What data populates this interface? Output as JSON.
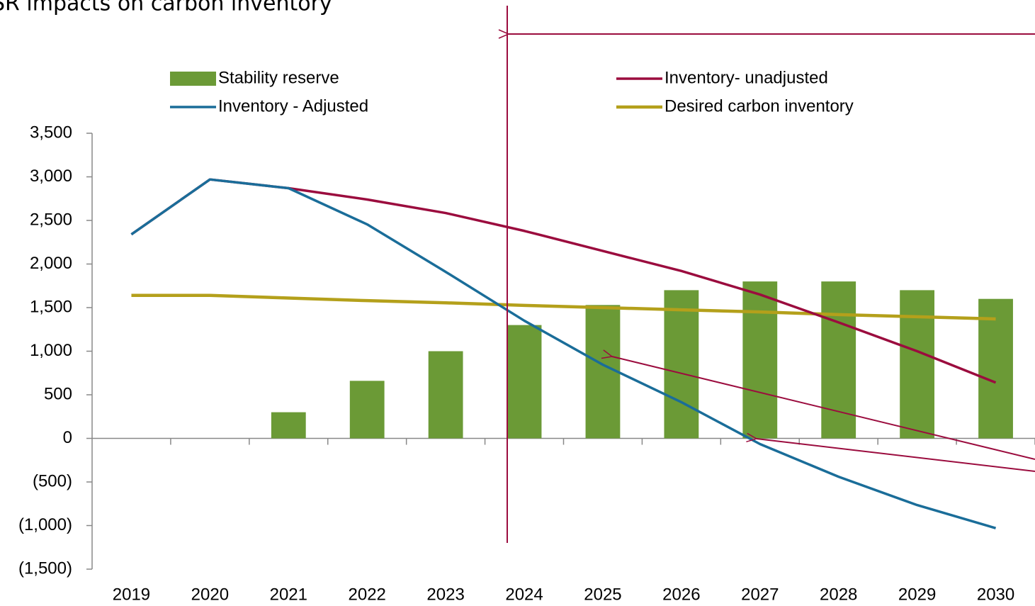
{
  "chart_data": {
    "type": "bar_line",
    "title": "SR impacts on carbon inventory",
    "categories": [
      "2019",
      "2020",
      "2021",
      "2022",
      "2023",
      "2024",
      "2025",
      "2026",
      "2027",
      "2028",
      "2029",
      "2030"
    ],
    "series": [
      {
        "name": "Stability reserve",
        "type": "bar",
        "color": "#6b9a36",
        "values": [
          null,
          null,
          300,
          660,
          1000,
          1300,
          1530,
          1700,
          1800,
          1800,
          1700,
          1600
        ]
      },
      {
        "name": "Inventory- unadjusted",
        "type": "line",
        "color": "#9b0c3e",
        "values": [
          2340,
          2970,
          2870,
          2740,
          2585,
          2380,
          2150,
          1920,
          1650,
          1330,
          1000,
          640
        ]
      },
      {
        "name": "Inventory - Adjusted",
        "type": "line",
        "color": "#1a6d99",
        "values": [
          2340,
          2970,
          2870,
          2455,
          1910,
          1350,
          845,
          415,
          -65,
          -440,
          -765,
          -1030
        ]
      },
      {
        "name": "Desired carbon inventory",
        "type": "line",
        "color": "#b4a01b",
        "values": [
          1640,
          1640,
          1610,
          1580,
          1555,
          1525,
          1500,
          1475,
          1450,
          1420,
          1395,
          1370
        ]
      }
    ],
    "ylim": [
      -1500,
      3500
    ],
    "yticks": [
      {
        "value": -1500,
        "label": "(1,500)"
      },
      {
        "value": -1000,
        "label": "(1,000)"
      },
      {
        "value": -500,
        "label": "(500)"
      },
      0,
      500,
      {
        "value": 1000,
        "label": "1,000"
      },
      {
        "value": 1500,
        "label": "1,500"
      },
      {
        "value": 2000,
        "label": "2,000"
      },
      {
        "value": 2500,
        "label": "2,500"
      },
      {
        "value": 3000,
        "label": "3,000"
      },
      {
        "value": 3500,
        "label": "3,500"
      }
    ]
  }
}
